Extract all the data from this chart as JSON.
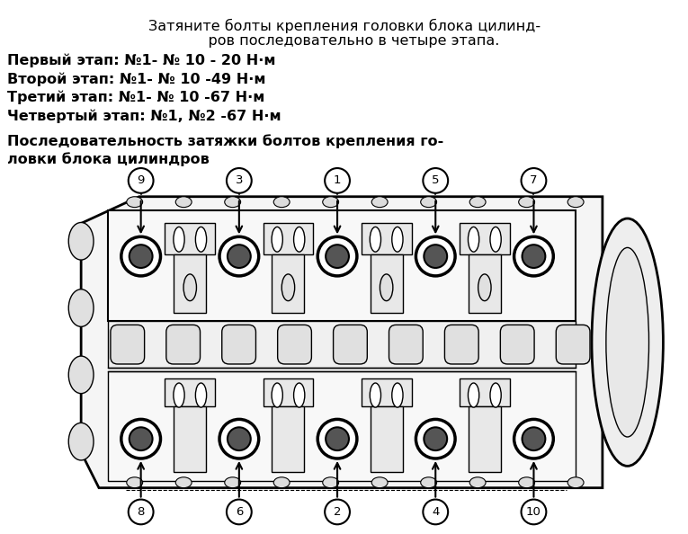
{
  "background_color": "#ffffff",
  "text_color": "#000000",
  "line1": "Затяните болты крепления головки блока цилинд-",
  "line2": "    ров последовательно в четыре этапа.",
  "step1": "Первый этап: №1- № 10 - 20 Н·м",
  "step2": "Второй этап: №1- № 10 -49 Н·м",
  "step3": "Третий этап: №1- № 10 -67 Н·м",
  "step4": "Четвертый этап: №1, №2 -67 Н·м",
  "subtitle1": "Последовательность затяжки болтов крепления го-",
  "subtitle2": "ловки блока цилиндров",
  "top_nums": [
    "9",
    "3",
    "1",
    "5",
    "7"
  ],
  "bot_nums": [
    "8",
    "6",
    "2",
    "4",
    "10"
  ],
  "fig_width": 7.65,
  "fig_height": 5.94
}
